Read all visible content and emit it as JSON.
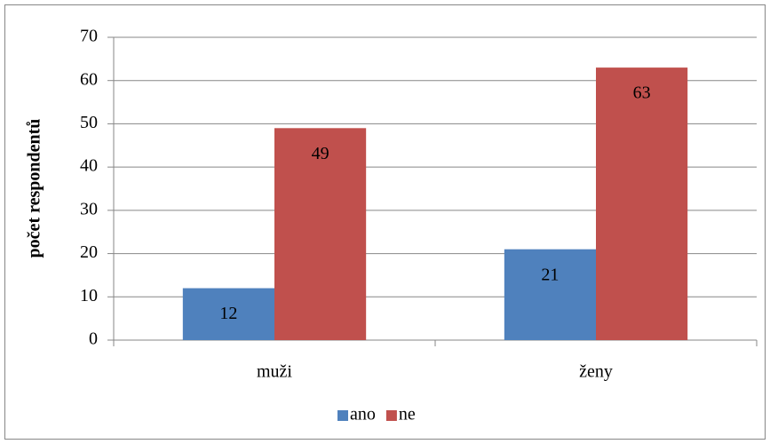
{
  "chart_data": {
    "type": "bar",
    "y_label": "počet respondentů",
    "categories": [
      "muži",
      "ženy"
    ],
    "series": [
      {
        "name": "ano",
        "color": "#4f81bd",
        "values": [
          12,
          21
        ]
      },
      {
        "name": "ne",
        "color": "#c0504d",
        "values": [
          49,
          63
        ]
      }
    ],
    "ylim": [
      0,
      70
    ],
    "yticks": [
      0,
      10,
      20,
      30,
      40,
      50,
      60,
      70
    ],
    "grid": true,
    "legend": "bottom"
  }
}
